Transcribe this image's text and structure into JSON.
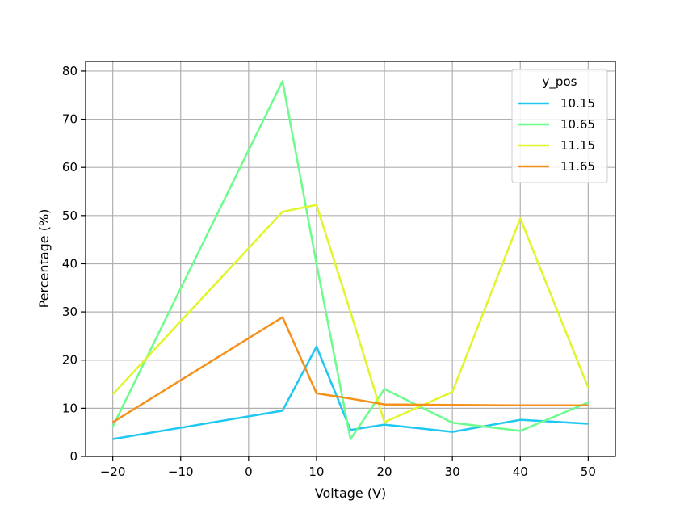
{
  "chart_data": {
    "type": "line",
    "xlabel": "Voltage (V)",
    "ylabel": "Percentage (%)",
    "xlim": [
      -24,
      54
    ],
    "ylim": [
      0,
      82
    ],
    "xticks": [
      "−20",
      "−10",
      "0",
      "10",
      "20",
      "30",
      "40",
      "50"
    ],
    "xtick_values": [
      -20,
      -10,
      0,
      10,
      20,
      30,
      40,
      50
    ],
    "yticks": [
      "0",
      "10",
      "20",
      "30",
      "40",
      "50",
      "60",
      "70",
      "80"
    ],
    "ytick_values": [
      0,
      10,
      20,
      30,
      40,
      50,
      60,
      70,
      80
    ],
    "grid": true,
    "legend": {
      "title": "y_pos",
      "placement": "top-right"
    },
    "x": [
      -20,
      5,
      10,
      15,
      20,
      30,
      40,
      50
    ],
    "series": [
      {
        "name": "10.15",
        "color": "#1ec8f0",
        "values": [
          3.6,
          9.5,
          22.8,
          5.5,
          6.6,
          5.1,
          7.6,
          6.8
        ]
      },
      {
        "name": "10.65",
        "color": "#6cfc8c",
        "values": [
          6.2,
          77.9,
          40.0,
          3.6,
          14.0,
          7.0,
          5.3,
          11.2
        ]
      },
      {
        "name": "11.15",
        "color": "#e0f52a",
        "values": [
          12.9,
          50.8,
          52.2,
          30.0,
          7.1,
          13.4,
          49.4,
          14.3
        ]
      },
      {
        "name": "11.65",
        "color": "#f5901a",
        "values": [
          7.1,
          28.9,
          13.1,
          12.0,
          10.8,
          10.7,
          10.6,
          10.6
        ]
      }
    ]
  }
}
